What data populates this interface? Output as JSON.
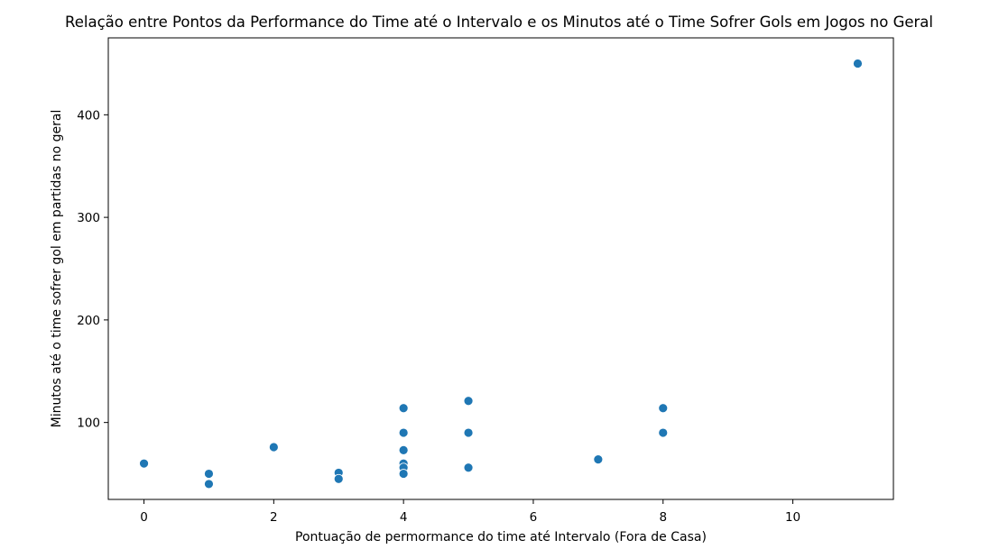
{
  "chart_data": {
    "type": "scatter",
    "title": "Relação entre Pontos da Performance do Time até o Intervalo e os Minutos até o Time Sofrer Gols em Jogos no Geral",
    "xlabel": "Pontuação de permormance do time até Intervalo (Fora de Casa)",
    "ylabel": "Minutos até o time sofrer gol em partidas no geral",
    "xlim": [
      -0.55,
      11.55
    ],
    "ylim": [
      25,
      475
    ],
    "xticks": [
      0,
      2,
      4,
      6,
      8,
      10
    ],
    "yticks": [
      100,
      200,
      300,
      400
    ],
    "grid": false,
    "marker_color": "#1f77b4",
    "points": [
      {
        "x": 0,
        "y": 60
      },
      {
        "x": 1,
        "y": 50
      },
      {
        "x": 1,
        "y": 40
      },
      {
        "x": 2,
        "y": 76
      },
      {
        "x": 3,
        "y": 51
      },
      {
        "x": 3,
        "y": 45
      },
      {
        "x": 4,
        "y": 114
      },
      {
        "x": 4,
        "y": 90
      },
      {
        "x": 4,
        "y": 73
      },
      {
        "x": 4,
        "y": 60
      },
      {
        "x": 4,
        "y": 56
      },
      {
        "x": 4,
        "y": 50
      },
      {
        "x": 5,
        "y": 121
      },
      {
        "x": 5,
        "y": 90
      },
      {
        "x": 5,
        "y": 56
      },
      {
        "x": 7,
        "y": 64
      },
      {
        "x": 8,
        "y": 114
      },
      {
        "x": 8,
        "y": 90
      },
      {
        "x": 11,
        "y": 450
      }
    ]
  }
}
